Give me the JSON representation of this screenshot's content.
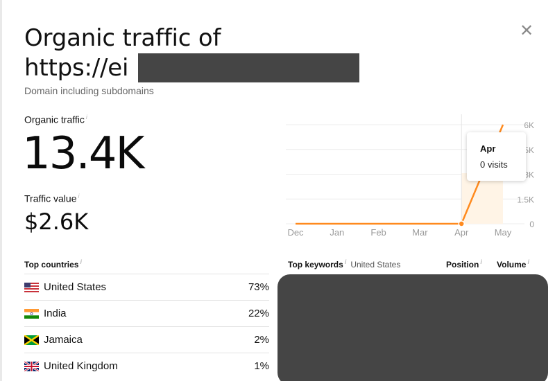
{
  "header": {
    "title_line1": "Organic traffic of",
    "title_line2": "https://ei",
    "subtitle": "Domain including subdomains",
    "close_icon": "close-icon"
  },
  "metrics": {
    "traffic_label": "Organic traffic",
    "traffic_value": "13.4K",
    "value_label": "Traffic value",
    "value_value": "$2.6K",
    "info_glyph": "i"
  },
  "chart_data": {
    "type": "line",
    "title": "",
    "x": [
      "Dec",
      "Jan",
      "Feb",
      "Mar",
      "Apr",
      "May"
    ],
    "series": [
      {
        "values": [
          0,
          0,
          0,
          0,
          0,
          6000
        ]
      }
    ],
    "y_tick_labels": [
      "6K",
      "5K",
      "3K",
      "1.5K",
      "0"
    ],
    "ylim": [
      0,
      6000
    ],
    "grid": true,
    "color": "#ff8a1e",
    "hover_index": 4,
    "tooltip": {
      "title": "Apr",
      "value": "0 visits"
    }
  },
  "countries": {
    "heading": "Top countries",
    "rows": [
      {
        "name": "United States",
        "pct": "73%",
        "flag": "us-flag"
      },
      {
        "name": "India",
        "pct": "22%",
        "flag": "india-flag"
      },
      {
        "name": "Jamaica",
        "pct": "2%",
        "flag": "jamaica-flag"
      },
      {
        "name": "United Kingdom",
        "pct": "1%",
        "flag": "uk-flag"
      }
    ]
  },
  "keywords": {
    "heading": "Top keywords",
    "location": "United States",
    "col_position": "Position",
    "col_volume": "Volume"
  }
}
